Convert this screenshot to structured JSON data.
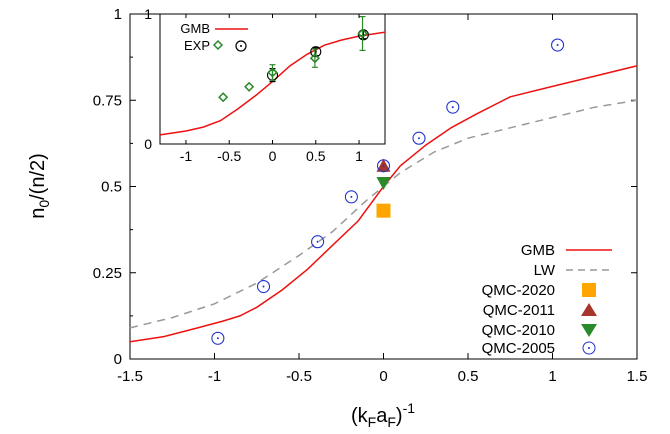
{
  "chart_data": {
    "type": "scatter",
    "xlabel": "(k_F a_F)^-1",
    "xlabel_main": "(k",
    "xlabel_sub1": "F",
    "xlabel_mid": "a",
    "xlabel_sub2": "F",
    "xlabel_close": ")",
    "xlabel_sup": "-1",
    "ylabel": "n_0/(n/2)",
    "ylabel_n": "n",
    "ylabel_sub": "0",
    "ylabel_rest": "/(n/2)",
    "xlim": [
      -1.5,
      1.5
    ],
    "ylim": [
      0,
      1
    ],
    "xticks": [
      "-1.5",
      "-1",
      "-0.5",
      "0",
      "0.5",
      "1",
      "1.5"
    ],
    "yticks": [
      "0",
      "0.25",
      "0.5",
      "0.75",
      "1"
    ],
    "legend_position": "bottom-right",
    "series": [
      {
        "name": "GMB",
        "kind": "line",
        "color": "#ee1111",
        "dash": "solid",
        "x": [
          -1.5,
          -1.3,
          -1.1,
          -0.95,
          -0.85,
          -0.75,
          -0.6,
          -0.45,
          -0.3,
          -0.15,
          0.0,
          0.1,
          0.25,
          0.4,
          0.55,
          0.75,
          1.0,
          1.25,
          1.5
        ],
        "y": [
          0.05,
          0.065,
          0.09,
          0.11,
          0.125,
          0.15,
          0.2,
          0.26,
          0.33,
          0.4,
          0.5,
          0.56,
          0.62,
          0.67,
          0.71,
          0.76,
          0.79,
          0.82,
          0.85
        ]
      },
      {
        "name": "LW",
        "kind": "line",
        "color": "#999999",
        "dash": "dashed",
        "x": [
          -1.5,
          -1.25,
          -1.0,
          -0.75,
          -0.5,
          -0.3,
          -0.1,
          0.1,
          0.3,
          0.5,
          0.75,
          1.0,
          1.25,
          1.5
        ],
        "y": [
          0.09,
          0.12,
          0.16,
          0.22,
          0.3,
          0.37,
          0.46,
          0.54,
          0.6,
          0.64,
          0.67,
          0.7,
          0.73,
          0.75
        ]
      },
      {
        "name": "QMC-2020",
        "kind": "marker",
        "marker": "square",
        "color": "#ffa500",
        "x": [
          0.0
        ],
        "y": [
          0.43
        ]
      },
      {
        "name": "QMC-2011",
        "kind": "marker",
        "marker": "triangle-up",
        "color": "#a8352c",
        "x": [
          0.0
        ],
        "y": [
          0.56
        ]
      },
      {
        "name": "QMC-2010",
        "kind": "marker",
        "marker": "triangle-down",
        "color": "#2a8a2a",
        "x": [
          0.0
        ],
        "y": [
          0.51
        ]
      },
      {
        "name": "QMC-2005",
        "kind": "marker",
        "marker": "circle-dot",
        "color": "#2233cc",
        "x": [
          -0.98,
          -0.71,
          -0.39,
          -0.19,
          0.0,
          0.21,
          0.41,
          1.03
        ],
        "y": [
          0.06,
          0.21,
          0.34,
          0.47,
          0.56,
          0.64,
          0.73,
          0.91
        ]
      }
    ],
    "inset": {
      "xlim": [
        -1.3,
        1.3
      ],
      "ylim": [
        0,
        1
      ],
      "xticks": [
        "-1",
        "-0.5",
        "0",
        "0.5",
        "1"
      ],
      "yticks": [
        "0",
        "1"
      ],
      "legend_position": "top-left",
      "series": [
        {
          "name": "GMB",
          "kind": "line",
          "color": "#ee1111",
          "x": [
            -1.3,
            -1.0,
            -0.8,
            -0.6,
            -0.4,
            -0.2,
            0.0,
            0.2,
            0.4,
            0.6,
            0.8,
            1.0,
            1.3
          ],
          "y": [
            0.07,
            0.1,
            0.13,
            0.18,
            0.27,
            0.37,
            0.48,
            0.6,
            0.69,
            0.76,
            0.8,
            0.83,
            0.86
          ]
        },
        {
          "name": "EXP",
          "kind": "marker",
          "marker": "circle-dot",
          "color": "#000000",
          "x": [
            0.0,
            0.5,
            1.05
          ],
          "y": [
            0.53,
            0.71,
            0.84
          ],
          "err": [
            0.05,
            0.03,
            0.03
          ]
        },
        {
          "name": "",
          "kind": "marker",
          "marker": "diamond",
          "color": "#2a8a2a",
          "x": [
            -0.57,
            -0.27,
            0.0,
            0.49,
            1.04
          ],
          "y": [
            0.36,
            0.44,
            0.55,
            0.66,
            0.85
          ],
          "err": [
            0,
            0,
            0.06,
            0.07,
            0.13
          ]
        }
      ]
    }
  }
}
